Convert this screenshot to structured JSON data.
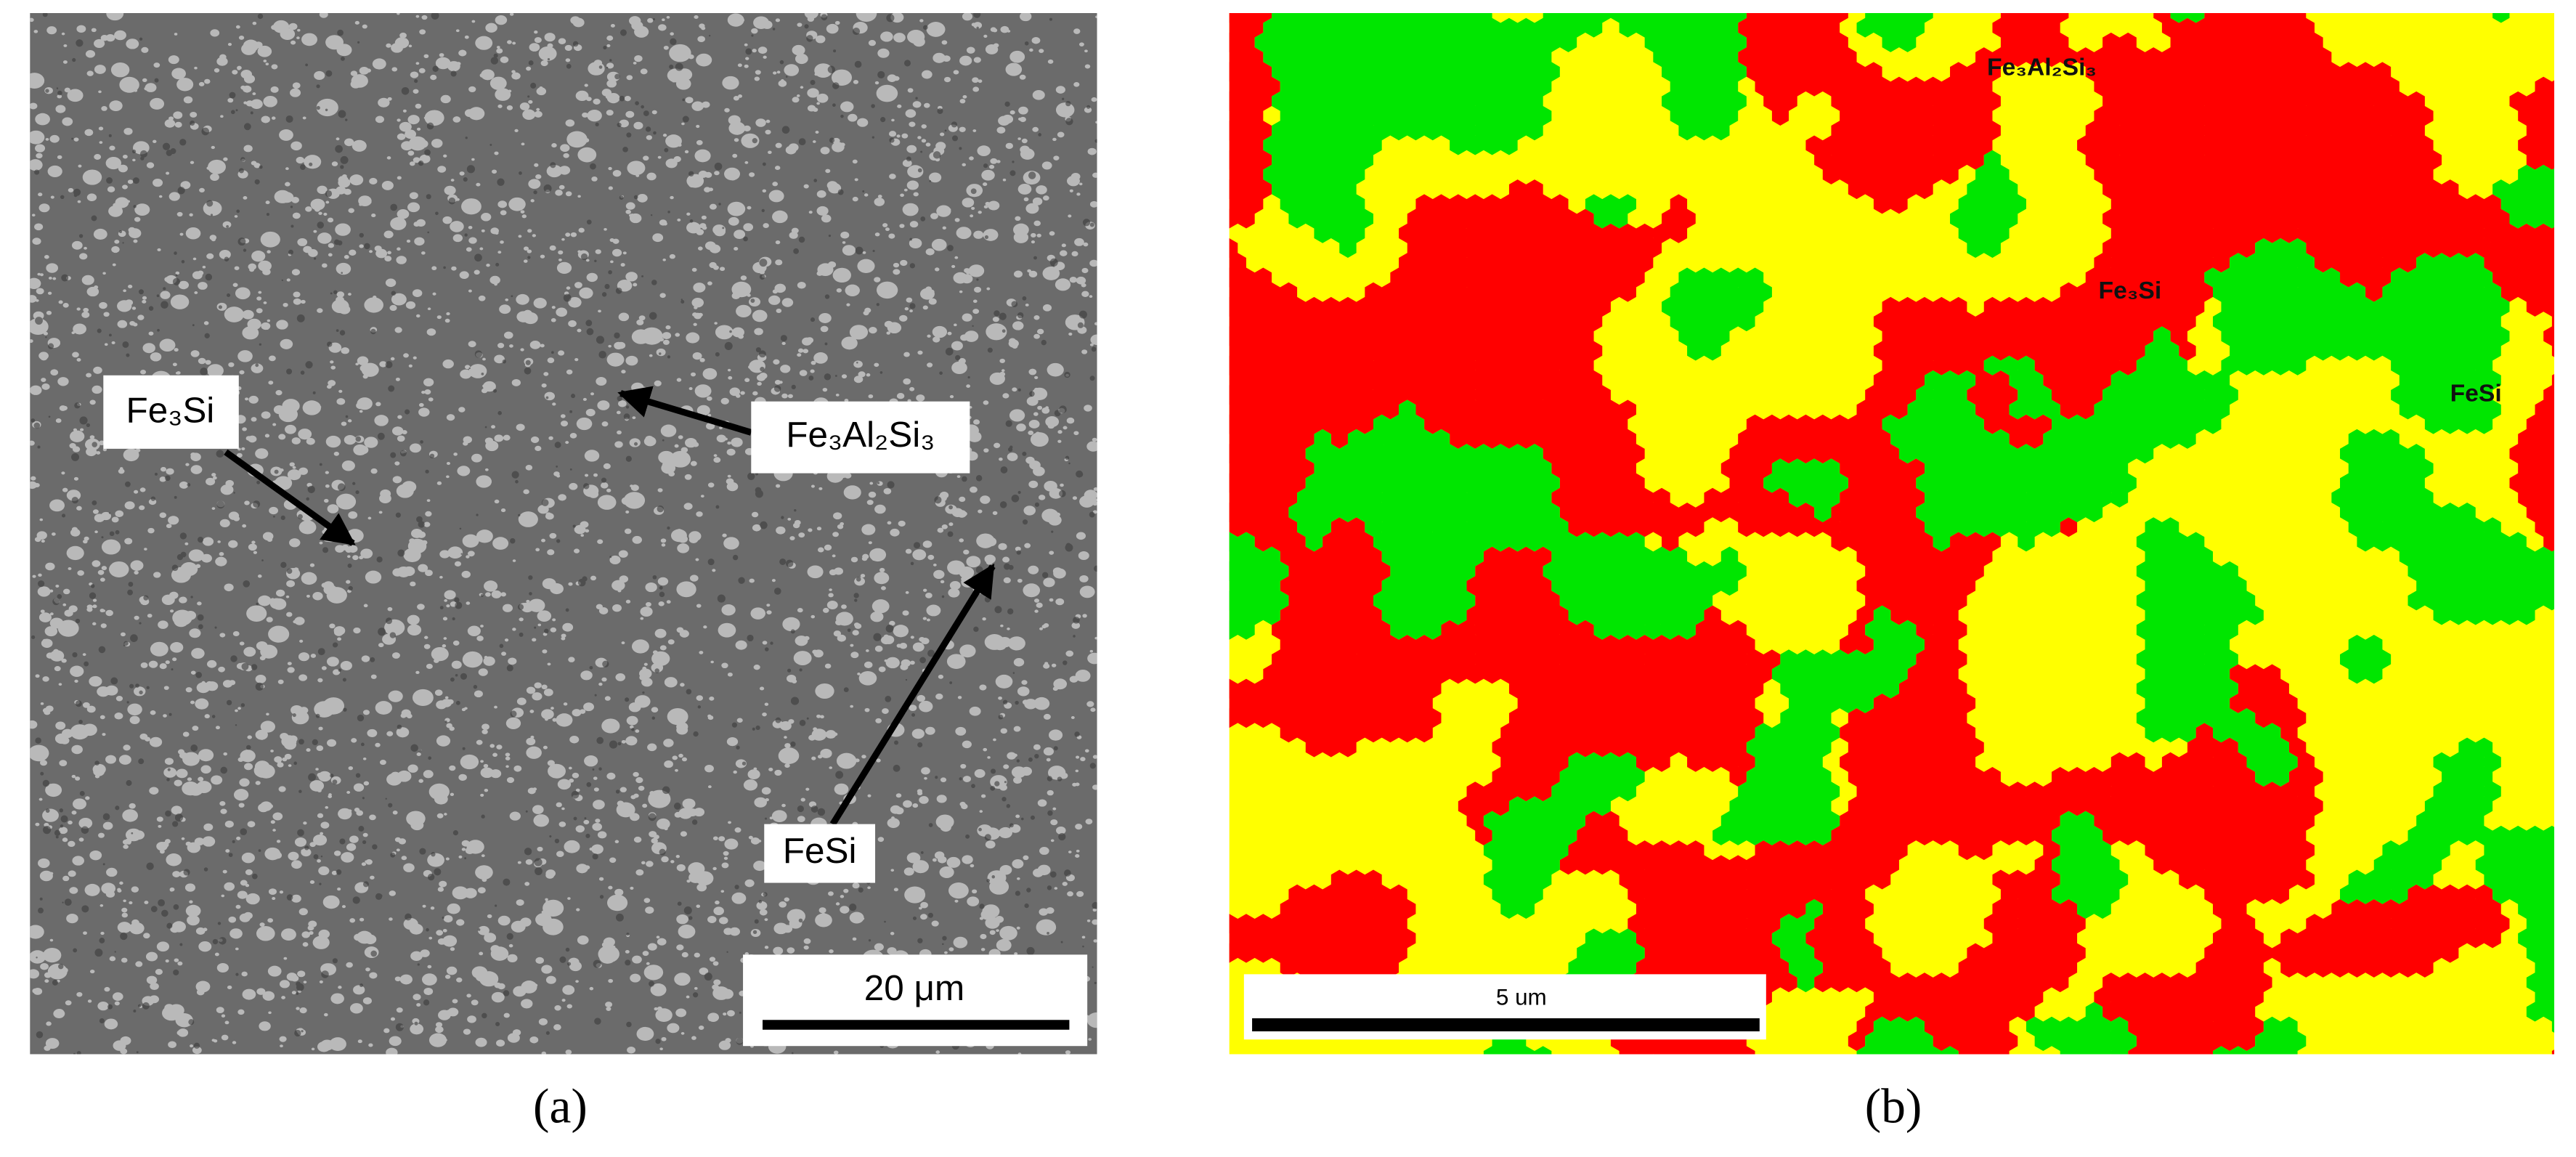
{
  "panel_a": {
    "labels": [
      "Fe₃Si",
      "Fe₃Al₂Si₃",
      "FeSi"
    ],
    "scale_bar": "20 μm",
    "caption": "(a)"
  },
  "panel_b": {
    "labels": [
      "Fe₃Al₂Si₃",
      "Fe₃Si",
      "FeSi"
    ],
    "scale_bar": "5 um",
    "caption": "(b)"
  }
}
